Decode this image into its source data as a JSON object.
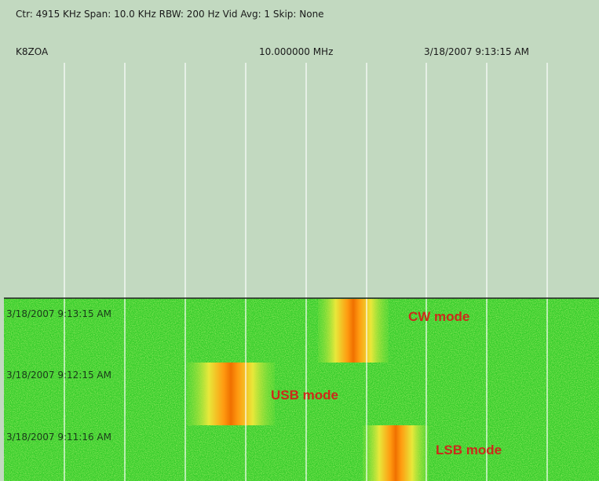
{
  "header": {
    "info": "Ctr: 4915 KHz  Span: 10.0 KHz  RBW: 200 Hz  Vid Avg: 1 Skip: None",
    "callsign": "K8ZOA",
    "frequency": "10.000000 MHz",
    "timestamp": "3/18/2007 9:13:15 AM"
  },
  "waterfall": {
    "rows": [
      "3/18/2007 9:13:15 AM",
      "3/18/2007 9:12:15 AM",
      "3/18/2007 9:11:16 AM"
    ],
    "annotations": [
      "CW mode",
      "USB mode",
      "LSB mode"
    ]
  }
}
